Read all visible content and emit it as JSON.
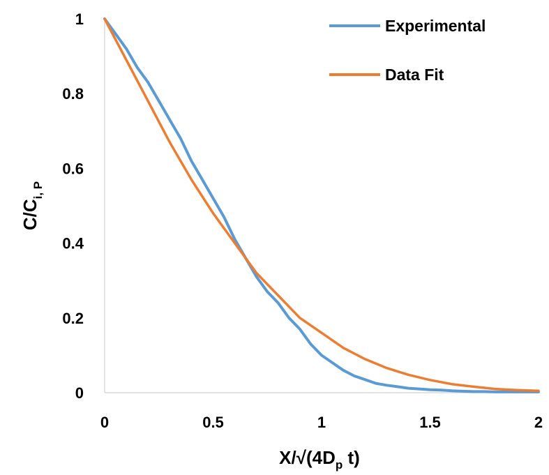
{
  "chart_data": {
    "type": "line",
    "xlim": [
      0,
      2
    ],
    "ylim": [
      0,
      1
    ],
    "x_ticks": [
      "0",
      "0.5",
      "1",
      "1.5",
      "2"
    ],
    "y_ticks": [
      "0",
      "0.2",
      "0.4",
      "0.6",
      "0.8",
      "1"
    ],
    "xlabel": {
      "main": "X/√(4D",
      "sub": "p",
      "tail": " t)"
    },
    "ylabel": {
      "main": "C/C",
      "sub": "i, P"
    },
    "grid": false,
    "legend_position": "top-right",
    "series": [
      {
        "name": "Experimental",
        "color": "#5b9bd5",
        "x": [
          0.0,
          0.05,
          0.1,
          0.15,
          0.2,
          0.25,
          0.3,
          0.35,
          0.4,
          0.45,
          0.5,
          0.55,
          0.6,
          0.65,
          0.7,
          0.75,
          0.8,
          0.85,
          0.9,
          0.95,
          1.0,
          1.05,
          1.1,
          1.15,
          1.2,
          1.25,
          1.3,
          1.35,
          1.4,
          1.45,
          1.5,
          1.55,
          1.6,
          1.65,
          1.7,
          1.75,
          1.8,
          1.85,
          1.9,
          1.95,
          2.0
        ],
        "y": [
          1.0,
          0.96,
          0.92,
          0.87,
          0.83,
          0.78,
          0.73,
          0.68,
          0.62,
          0.57,
          0.52,
          0.47,
          0.41,
          0.36,
          0.31,
          0.27,
          0.24,
          0.2,
          0.17,
          0.13,
          0.1,
          0.08,
          0.06,
          0.045,
          0.035,
          0.025,
          0.02,
          0.016,
          0.012,
          0.01,
          0.008,
          0.007,
          0.005,
          0.004,
          0.003,
          0.003,
          0.002,
          0.002,
          0.002,
          0.002,
          0.002
        ]
      },
      {
        "name": "Data Fit",
        "color": "#ed7d31",
        "x": [
          0.0,
          0.1,
          0.2,
          0.3,
          0.4,
          0.5,
          0.6,
          0.7,
          0.8,
          0.9,
          1.0,
          1.1,
          1.2,
          1.3,
          1.4,
          1.5,
          1.6,
          1.7,
          1.8,
          1.9,
          2.0
        ],
        "y": [
          1.0,
          0.89,
          0.78,
          0.67,
          0.57,
          0.48,
          0.4,
          0.32,
          0.26,
          0.2,
          0.16,
          0.12,
          0.09,
          0.066,
          0.048,
          0.034,
          0.023,
          0.016,
          0.01,
          0.007,
          0.005
        ]
      }
    ]
  }
}
